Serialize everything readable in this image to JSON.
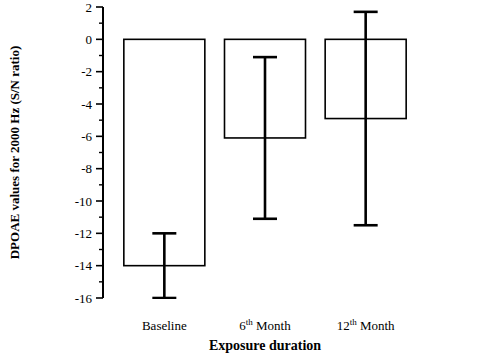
{
  "chart_data": {
    "type": "bar",
    "x_label": "Exposure duration",
    "y_label": "DPOAE values for 2000 Hz (S/N ratio)",
    "categories": [
      "Baseline",
      "6th Month",
      "12th Month"
    ],
    "values": [
      -14,
      -6.1,
      -4.9
    ],
    "errors": [
      2,
      5,
      6.6
    ],
    "color": "#ffffff",
    "ylim": [
      -16,
      2
    ],
    "yticks": [
      -16,
      -14,
      -12,
      -10,
      -8,
      -6,
      -4,
      -2,
      0,
      2
    ]
  }
}
